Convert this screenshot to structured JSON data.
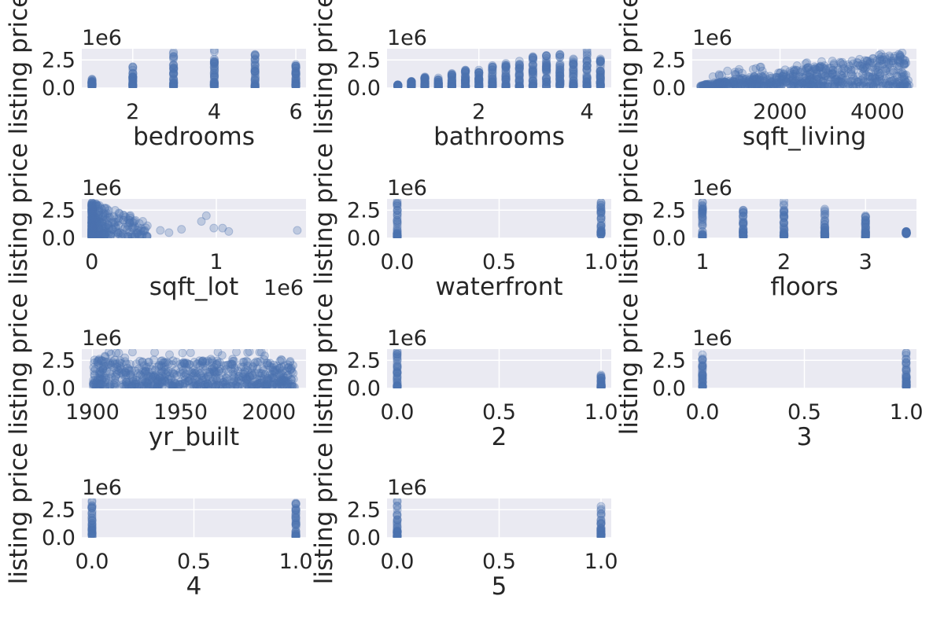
{
  "figure": {
    "colors": {
      "background": "#eaeaf2",
      "grid": "#ffffff",
      "point": "#4c72b0",
      "text": "#262626"
    }
  },
  "chart_data": [
    {
      "type": "scatter",
      "xlabel": "bedrooms",
      "ylabel": "listing price",
      "y_offset_label": "1e6",
      "x_offset_label": "",
      "xlim": [
        0.75,
        6.25
      ],
      "ylim": [
        0,
        3.5
      ],
      "xticks": [
        2,
        4,
        6
      ],
      "xtick_labels": [
        "2",
        "4",
        "6"
      ],
      "yticks": [
        0,
        2.5
      ],
      "ytick_labels": [
        "0.0",
        "2.5"
      ],
      "grid": true,
      "kind": "discrete",
      "x_values": [
        1,
        2,
        3,
        4,
        5,
        6
      ],
      "y_ranges": [
        [
          0.1,
          0.8
        ],
        [
          0.1,
          1.9
        ],
        [
          0.1,
          3.2
        ],
        [
          0.1,
          3.4
        ],
        [
          0.1,
          3.0
        ],
        [
          0.1,
          2.1
        ]
      ]
    },
    {
      "type": "scatter",
      "xlabel": "bathrooms",
      "ylabel": "listing price",
      "y_offset_label": "1e6",
      "x_offset_label": "",
      "xlim": [
        0.3,
        4.45
      ],
      "ylim": [
        0,
        3.5
      ],
      "xticks": [
        2,
        4
      ],
      "xtick_labels": [
        "2",
        "4"
      ],
      "yticks": [
        0,
        2.5
      ],
      "ytick_labels": [
        "0.0",
        "2.5"
      ],
      "grid": true,
      "kind": "discrete",
      "x_values": [
        0.5,
        0.75,
        1.0,
        1.25,
        1.5,
        1.75,
        2.0,
        2.25,
        2.5,
        2.75,
        3.0,
        3.25,
        3.5,
        3.75,
        4.0,
        4.25
      ],
      "y_ranges": [
        [
          0.15,
          0.3
        ],
        [
          0.1,
          0.6
        ],
        [
          0.1,
          1.0
        ],
        [
          0.1,
          0.9
        ],
        [
          0.1,
          1.3
        ],
        [
          0.1,
          1.6
        ],
        [
          0.1,
          1.6
        ],
        [
          0.1,
          2.0
        ],
        [
          0.1,
          2.2
        ],
        [
          0.1,
          2.4
        ],
        [
          0.1,
          2.8
        ],
        [
          0.1,
          2.9
        ],
        [
          0.1,
          3.0
        ],
        [
          0.1,
          2.6
        ],
        [
          0.1,
          3.4
        ],
        [
          0.1,
          2.6
        ]
      ]
    },
    {
      "type": "scatter",
      "xlabel": "sqft_living",
      "ylabel": "listing price",
      "y_offset_label": "1e6",
      "x_offset_label": "",
      "xlim": [
        200,
        4800
      ],
      "ylim": [
        0,
        3.5
      ],
      "xticks": [
        2000,
        4000
      ],
      "xtick_labels": [
        "2000",
        "4000"
      ],
      "yticks": [
        0,
        2.5
      ],
      "ytick_labels": [
        "0.0",
        "2.5"
      ],
      "grid": true,
      "kind": "continuous",
      "x_range": [
        370,
        4650
      ],
      "trend": "increasing",
      "y_range": [
        0.1,
        3.3
      ]
    },
    {
      "type": "scatter",
      "xlabel": "sqft_lot",
      "ylabel": "listing price",
      "y_offset_label": "1e6",
      "x_offset_label": "1e6",
      "xlim": [
        -0.08,
        1.72
      ],
      "ylim": [
        0,
        3.5
      ],
      "xticks": [
        0,
        1
      ],
      "xtick_labels": [
        "0",
        "1"
      ],
      "yticks": [
        0,
        2.5
      ],
      "ytick_labels": [
        "0.0",
        "2.5"
      ],
      "grid": true,
      "kind": "skewed",
      "x_range": [
        0.0,
        1.65
      ],
      "y_range": [
        0.1,
        3.2
      ]
    },
    {
      "type": "scatter",
      "xlabel": "waterfront",
      "ylabel": "listing price",
      "y_offset_label": "1e6",
      "x_offset_label": "",
      "xlim": [
        -0.05,
        1.05
      ],
      "ylim": [
        0,
        3.5
      ],
      "xticks": [
        0,
        0.5,
        1
      ],
      "xtick_labels": [
        "0.0",
        "0.5",
        "1.0"
      ],
      "yticks": [
        0,
        2.5
      ],
      "ytick_labels": [
        "0.0",
        "2.5"
      ],
      "grid": true,
      "kind": "discrete",
      "x_values": [
        0,
        1
      ],
      "y_ranges": [
        [
          0.1,
          3.3
        ],
        [
          0.3,
          3.2
        ]
      ]
    },
    {
      "type": "scatter",
      "xlabel": "floors",
      "ylabel": "listing price",
      "y_offset_label": "1e6",
      "x_offset_label": "",
      "xlim": [
        0.875,
        3.625
      ],
      "ylim": [
        0,
        3.5
      ],
      "xticks": [
        1,
        2,
        3
      ],
      "xtick_labels": [
        "1",
        "2",
        "3"
      ],
      "yticks": [
        0,
        2.5
      ],
      "ytick_labels": [
        "0.0",
        "2.5"
      ],
      "grid": true,
      "kind": "discrete",
      "x_values": [
        1,
        1.5,
        2,
        2.5,
        3,
        3.5
      ],
      "y_ranges": [
        [
          0.1,
          3.2
        ],
        [
          0.1,
          2.5
        ],
        [
          0.1,
          3.3
        ],
        [
          0.1,
          2.6
        ],
        [
          0.1,
          2.0
        ],
        [
          0.4,
          0.6
        ]
      ]
    },
    {
      "type": "scatter",
      "xlabel": "yr_built",
      "ylabel": "listing price",
      "y_offset_label": "1e6",
      "x_offset_label": "",
      "xlim": [
        1894,
        2021
      ],
      "ylim": [
        0,
        3.5
      ],
      "xticks": [
        1900,
        1950,
        2000
      ],
      "xtick_labels": [
        "1900",
        "1950",
        "2000"
      ],
      "yticks": [
        0,
        2.5
      ],
      "ytick_labels": [
        "0.0",
        "2.5"
      ],
      "grid": true,
      "kind": "continuous",
      "x_range": [
        1900,
        2015
      ],
      "trend": "flat",
      "y_range": [
        0.1,
        3.3
      ]
    },
    {
      "type": "scatter",
      "xlabel": "2",
      "ylabel": "listing price",
      "y_offset_label": "1e6",
      "x_offset_label": "",
      "xlim": [
        -0.05,
        1.05
      ],
      "ylim": [
        0,
        3.5
      ],
      "xticks": [
        0,
        0.5,
        1
      ],
      "xtick_labels": [
        "0.0",
        "0.5",
        "1.0"
      ],
      "yticks": [
        0,
        2.5
      ],
      "ytick_labels": [
        "0.0",
        "2.5"
      ],
      "grid": true,
      "kind": "discrete",
      "x_values": [
        0,
        1
      ],
      "y_ranges": [
        [
          0.1,
          3.3
        ],
        [
          0.1,
          1.2
        ]
      ]
    },
    {
      "type": "scatter",
      "xlabel": "3",
      "ylabel": "listing price",
      "y_offset_label": "1e6",
      "x_offset_label": "",
      "xlim": [
        -0.05,
        1.05
      ],
      "ylim": [
        0,
        3.5
      ],
      "xticks": [
        0,
        0.5,
        1
      ],
      "xtick_labels": [
        "0.0",
        "0.5",
        "1.0"
      ],
      "yticks": [
        0,
        2.5
      ],
      "ytick_labels": [
        "0.0",
        "2.5"
      ],
      "grid": true,
      "kind": "discrete",
      "x_values": [
        0,
        1
      ],
      "y_ranges": [
        [
          0.1,
          3.0
        ],
        [
          0.1,
          3.2
        ]
      ]
    },
    {
      "type": "scatter",
      "xlabel": "4",
      "ylabel": "listing price",
      "y_offset_label": "1e6",
      "x_offset_label": "",
      "xlim": [
        -0.05,
        1.05
      ],
      "ylim": [
        0,
        3.5
      ],
      "xticks": [
        0,
        0.5,
        1
      ],
      "xtick_labels": [
        "0.0",
        "0.5",
        "1.0"
      ],
      "yticks": [
        0,
        2.5
      ],
      "ytick_labels": [
        "0.0",
        "2.5"
      ],
      "grid": true,
      "kind": "discrete",
      "x_values": [
        0,
        1
      ],
      "y_ranges": [
        [
          0.1,
          3.3
        ],
        [
          0.1,
          3.1
        ]
      ]
    },
    {
      "type": "scatter",
      "xlabel": "5",
      "ylabel": "listing price",
      "y_offset_label": "1e6",
      "x_offset_label": "",
      "xlim": [
        -0.05,
        1.05
      ],
      "ylim": [
        0,
        3.5
      ],
      "xticks": [
        0,
        0.5,
        1
      ],
      "xtick_labels": [
        "0.0",
        "0.5",
        "1.0"
      ],
      "yticks": [
        0,
        2.5
      ],
      "ytick_labels": [
        "0.0",
        "2.5"
      ],
      "grid": true,
      "kind": "discrete",
      "x_values": [
        0,
        1
      ],
      "y_ranges": [
        [
          0.1,
          3.3
        ],
        [
          0.1,
          2.8
        ]
      ]
    }
  ]
}
